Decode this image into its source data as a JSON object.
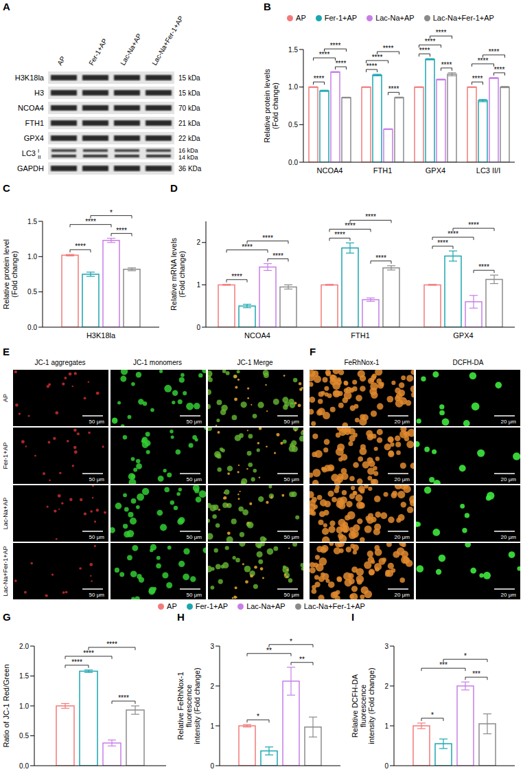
{
  "blot": {
    "letter": "A",
    "lanes": [
      "AP",
      "Fer-1+AP",
      "Lac-Na+AP",
      "Lac-Na+Fer-1+AP"
    ],
    "rows": [
      {
        "label": "H3K18la",
        "size": "15 kDa"
      },
      {
        "label": "H3",
        "size": "15 kDa"
      },
      {
        "label": "NCOA4",
        "size": "70 kDa"
      },
      {
        "label": "FTH1",
        "size": "21 kDa"
      },
      {
        "label": "GPX4",
        "size": "22 kDa"
      },
      {
        "label": "LC3",
        "sublabels": [
          "I",
          "II"
        ],
        "sizes": [
          "16 kDa",
          "14 kDa"
        ]
      },
      {
        "label": "GAPDH",
        "size": "36 KDa"
      }
    ]
  },
  "chart_data": [
    {
      "letter": "B",
      "type": "bar",
      "categories": [
        "NCOA4",
        "FTH1",
        "GPX4",
        "LC3 II/I"
      ],
      "y_label": [
        "Relative protein levels",
        "(Fold change)"
      ],
      "ylim": [
        0,
        1.5
      ],
      "yticks": [
        {
          "value": 0,
          "label": "0.0"
        },
        0.5,
        {
          "value": 1,
          "label": "1.0"
        },
        1.5
      ],
      "legend": "top",
      "series": [
        {
          "name": "AP",
          "color": "#f47a7a",
          "values": [
            1,
            1,
            1,
            1
          ],
          "errors": [
            0.004,
            0.004,
            0.004,
            0.004
          ]
        },
        {
          "name": "Fer-1+AP",
          "color": "#1aa6b0",
          "values": [
            0.95,
            1.16,
            1.37,
            0.82
          ],
          "errors": [
            0.008,
            0.01,
            0.008,
            0.015
          ]
        },
        {
          "name": "Lac-Na+AP",
          "color": "#c77ee8",
          "values": [
            1.2,
            0.44,
            1.1,
            1.12
          ],
          "errors": [
            0.006,
            0.005,
            0.006,
            0.006
          ]
        },
        {
          "name": "Lac-Na+Fer-1+AP",
          "color": "#8a8a8a",
          "values": [
            0.86,
            0.86,
            1.17,
            1.0
          ],
          "errors": [
            0.005,
            0.006,
            0.02,
            0.008
          ]
        }
      ],
      "comparisons": [
        [
          {
            "groups": [
              0,
              1
            ],
            "label": "****"
          },
          {
            "groups": [
              2,
              3
            ],
            "label": "****"
          },
          {
            "groups": [
              0,
              2
            ],
            "label": "****"
          },
          {
            "groups": [
              1,
              3
            ],
            "label": "****"
          }
        ],
        [
          {
            "groups": [
              0,
              1
            ],
            "label": "****"
          },
          {
            "groups": [
              2,
              3
            ],
            "label": "****"
          },
          {
            "groups": [
              0,
              2
            ],
            "label": "****"
          },
          {
            "groups": [
              1,
              3
            ],
            "label": "****"
          }
        ],
        [
          {
            "groups": [
              0,
              1
            ],
            "label": "****"
          },
          {
            "groups": [
              2,
              3
            ],
            "label": "****"
          },
          {
            "groups": [
              0,
              2
            ],
            "label": "****"
          },
          {
            "groups": [
              1,
              3
            ],
            "label": "****"
          }
        ],
        [
          {
            "groups": [
              0,
              1
            ],
            "label": "****"
          },
          {
            "groups": [
              2,
              3
            ],
            "label": "****"
          },
          {
            "groups": [
              0,
              2
            ],
            "label": "****"
          },
          {
            "groups": [
              1,
              3
            ],
            "label": "****"
          }
        ]
      ]
    },
    {
      "letter": "C",
      "type": "bar",
      "categories": [
        "H3K18la"
      ],
      "y_label": [
        "Relative protein level",
        "(Fold change)"
      ],
      "ylim": [
        0,
        1.5
      ],
      "yticks": [
        {
          "value": 0,
          "label": "0.0"
        },
        0.5,
        {
          "value": 1,
          "label": "1.0"
        },
        1.5
      ],
      "series": [
        {
          "name": "AP",
          "color": "#f47a7a",
          "values": [
            1.02
          ],
          "errors": [
            0.01
          ]
        },
        {
          "name": "Fer-1+AP",
          "color": "#1aa6b0",
          "values": [
            0.75
          ],
          "errors": [
            0.03
          ]
        },
        {
          "name": "Lac-Na+AP",
          "color": "#c77ee8",
          "values": [
            1.23
          ],
          "errors": [
            0.03
          ]
        },
        {
          "name": "Lac-Na+Fer-1+AP",
          "color": "#8a8a8a",
          "values": [
            0.82
          ],
          "errors": [
            0.02
          ]
        }
      ],
      "comparisons": [
        [
          {
            "groups": [
              0,
              1
            ],
            "label": "****"
          },
          {
            "groups": [
              2,
              3
            ],
            "label": "****"
          },
          {
            "groups": [
              0,
              2
            ],
            "label": "****"
          },
          {
            "groups": [
              1,
              3
            ],
            "label": "*"
          }
        ]
      ]
    },
    {
      "letter": "D",
      "type": "bar",
      "categories": [
        "NCOA4",
        "FTH1",
        "GPX4"
      ],
      "y_label": [
        "Relative mRNA levels",
        "(Fold change)"
      ],
      "ylim": [
        0,
        2.5
      ],
      "yticks": [
        0,
        1,
        2
      ],
      "series": [
        {
          "name": "AP",
          "color": "#f47a7a",
          "values": [
            1,
            1,
            1
          ],
          "errors": [
            0.01,
            0.01,
            0.01
          ]
        },
        {
          "name": "Fer-1+AP",
          "color": "#1aa6b0",
          "values": [
            0.5,
            1.87,
            1.68
          ],
          "errors": [
            0.04,
            0.12,
            0.12
          ]
        },
        {
          "name": "Lac-Na+AP",
          "color": "#c77ee8",
          "values": [
            1.42,
            0.65,
            0.6
          ],
          "errors": [
            0.08,
            0.04,
            0.15
          ]
        },
        {
          "name": "Lac-Na+Fer-1+AP",
          "color": "#8a8a8a",
          "values": [
            0.95,
            1.4,
            1.13
          ],
          "errors": [
            0.05,
            0.05,
            0.1
          ]
        }
      ],
      "comparisons": [
        [
          {
            "groups": [
              0,
              1
            ],
            "label": "****"
          },
          {
            "groups": [
              2,
              3
            ],
            "label": "****"
          },
          {
            "groups": [
              0,
              2
            ],
            "label": "****"
          },
          {
            "groups": [
              1,
              3
            ],
            "label": "****"
          }
        ],
        [
          {
            "groups": [
              0,
              1
            ],
            "label": "****"
          },
          {
            "groups": [
              2,
              3
            ],
            "label": "****"
          },
          {
            "groups": [
              0,
              2
            ],
            "label": "****"
          },
          {
            "groups": [
              1,
              3
            ],
            "label": "****"
          }
        ],
        [
          {
            "groups": [
              0,
              1
            ],
            "label": "****"
          },
          {
            "groups": [
              2,
              3
            ],
            "label": "****"
          },
          {
            "groups": [
              0,
              2
            ],
            "label": "****"
          },
          {
            "groups": [
              1,
              3
            ],
            "label": "****"
          }
        ]
      ]
    },
    {
      "letter": "G",
      "type": "bar",
      "categories": [
        null
      ],
      "y_label": [
        "Ratio of JC-1 Red/Green"
      ],
      "ylim": [
        0,
        2
      ],
      "yticks": [
        {
          "value": 0,
          "label": "0.0"
        },
        0.5,
        {
          "value": 1,
          "label": "1.0"
        },
        1.5,
        {
          "value": 2,
          "label": "2.0"
        }
      ],
      "legend": "top",
      "series": [
        {
          "name": "AP",
          "color": "#f47a7a",
          "values": [
            1.0
          ],
          "errors": [
            0.04
          ]
        },
        {
          "name": "Fer-1+AP",
          "color": "#1aa6b0",
          "values": [
            1.58
          ],
          "errors": [
            0.02
          ]
        },
        {
          "name": "Lac-Na+AP",
          "color": "#c77ee8",
          "values": [
            0.38
          ],
          "errors": [
            0.05
          ]
        },
        {
          "name": "Lac-Na+Fer-1+AP",
          "color": "#8a8a8a",
          "values": [
            0.93
          ],
          "errors": [
            0.07
          ]
        }
      ],
      "comparisons": [
        [
          {
            "groups": [
              0,
              1
            ],
            "label": "****"
          },
          {
            "groups": [
              2,
              3
            ],
            "label": "****"
          },
          {
            "groups": [
              0,
              2
            ],
            "label": "****"
          },
          {
            "groups": [
              1,
              3
            ],
            "label": "****"
          }
        ]
      ]
    },
    {
      "letter": "H",
      "type": "bar",
      "categories": [
        null
      ],
      "y_label": [
        "Relative FeRhNox-1",
        "fluorescence",
        "intensity (Fold change)"
      ],
      "ylim": [
        0,
        3
      ],
      "yticks": [
        0,
        1,
        2,
        3
      ],
      "series": [
        {
          "name": "AP",
          "color": "#f47a7a",
          "values": [
            1.0
          ],
          "errors": [
            0.03
          ]
        },
        {
          "name": "Fer-1+AP",
          "color": "#1aa6b0",
          "values": [
            0.37
          ],
          "errors": [
            0.1
          ]
        },
        {
          "name": "Lac-Na+AP",
          "color": "#c77ee8",
          "values": [
            2.12
          ],
          "errors": [
            0.35
          ]
        },
        {
          "name": "Lac-Na+Fer-1+AP",
          "color": "#8a8a8a",
          "values": [
            0.97
          ],
          "errors": [
            0.25
          ]
        }
      ],
      "comparisons": [
        [
          {
            "groups": [
              0,
              1
            ],
            "label": "*"
          },
          {
            "groups": [
              2,
              3
            ],
            "label": "**"
          },
          {
            "groups": [
              0,
              2
            ],
            "label": "**"
          },
          {
            "groups": [
              1,
              3
            ],
            "label": "*"
          }
        ]
      ]
    },
    {
      "letter": "I",
      "type": "bar",
      "categories": [
        null
      ],
      "y_label": [
        "Relative DCFH-DA",
        "fluorescence",
        "intensity (Fold change)"
      ],
      "ylim": [
        0,
        3
      ],
      "yticks": [
        0,
        1,
        2,
        3
      ],
      "series": [
        {
          "name": "AP",
          "color": "#f47a7a",
          "values": [
            1.0
          ],
          "errors": [
            0.07
          ]
        },
        {
          "name": "Fer-1+AP",
          "color": "#1aa6b0",
          "values": [
            0.55
          ],
          "errors": [
            0.12
          ]
        },
        {
          "name": "Lac-Na+AP",
          "color": "#c77ee8",
          "values": [
            2.0
          ],
          "errors": [
            0.1
          ]
        },
        {
          "name": "Lac-Na+Fer-1+AP",
          "color": "#8a8a8a",
          "values": [
            1.05
          ],
          "errors": [
            0.25
          ]
        }
      ],
      "comparisons": [
        [
          {
            "groups": [
              0,
              1
            ],
            "label": "*"
          },
          {
            "groups": [
              2,
              3
            ],
            "label": "***"
          },
          {
            "groups": [
              0,
              2
            ],
            "label": "***"
          },
          {
            "groups": [
              1,
              3
            ],
            "label": "*"
          }
        ]
      ]
    }
  ],
  "jc1": {
    "letter": "E",
    "columns": [
      "JC-1 aggregates",
      "JC-1 monomers",
      "JC-1 Merge"
    ],
    "rows": [
      "AP",
      "Fer-1+AP",
      "Lac-Na+AP",
      "Lac-Na+Fer-1+AP"
    ],
    "scale_bar": "50 μm"
  },
  "fluorescence": {
    "letter": "F",
    "columns": [
      "FeRhNox-1",
      "DCFH-DA"
    ],
    "scale_bar": "20 μm"
  }
}
